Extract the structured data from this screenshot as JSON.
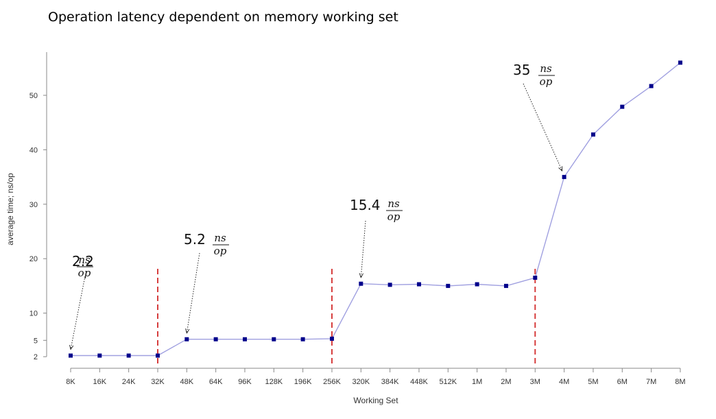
{
  "title": "Operation latency dependent on memory working set",
  "chart_data": {
    "type": "line",
    "title": "Operation latency dependent on memory working set",
    "xlabel": "Working Set",
    "ylabel": "average time; ns/op",
    "categories": [
      "8K",
      "16K",
      "24K",
      "32K",
      "48K",
      "64K",
      "96K",
      "128K",
      "196K",
      "256K",
      "320K",
      "384K",
      "448K",
      "512K",
      "1M",
      "2M",
      "3M",
      "4M",
      "5M",
      "6M",
      "7M",
      "8M"
    ],
    "series": [
      {
        "values": [
          2.2,
          2.2,
          2.2,
          2.2,
          5.2,
          5.2,
          5.2,
          5.2,
          5.2,
          5.3,
          15.4,
          15.2,
          15.3,
          15.0,
          15.3,
          15.0,
          16.5,
          35,
          42.8,
          47.9,
          51.7,
          56
        ]
      }
    ],
    "yticks": [
      2,
      5,
      10,
      20,
      30,
      40,
      50
    ],
    "ylim": [
      0,
      58
    ],
    "grid": false,
    "boundaries": [
      "32K",
      "256K",
      "3M"
    ],
    "annotations": [
      {
        "value": "2.2",
        "num": "ns",
        "den": "op",
        "target": "8K"
      },
      {
        "value": "5.2",
        "num": "ns",
        "den": "op",
        "target": "48K"
      },
      {
        "value": "15.4",
        "num": "ns",
        "den": "op",
        "target": "320K"
      },
      {
        "value": "35",
        "num": "ns",
        "den": "op",
        "target": "4M"
      }
    ],
    "colors": {
      "line": "#a0a0e0",
      "marker": "#00008b",
      "boundary": "#d63c3c"
    }
  }
}
